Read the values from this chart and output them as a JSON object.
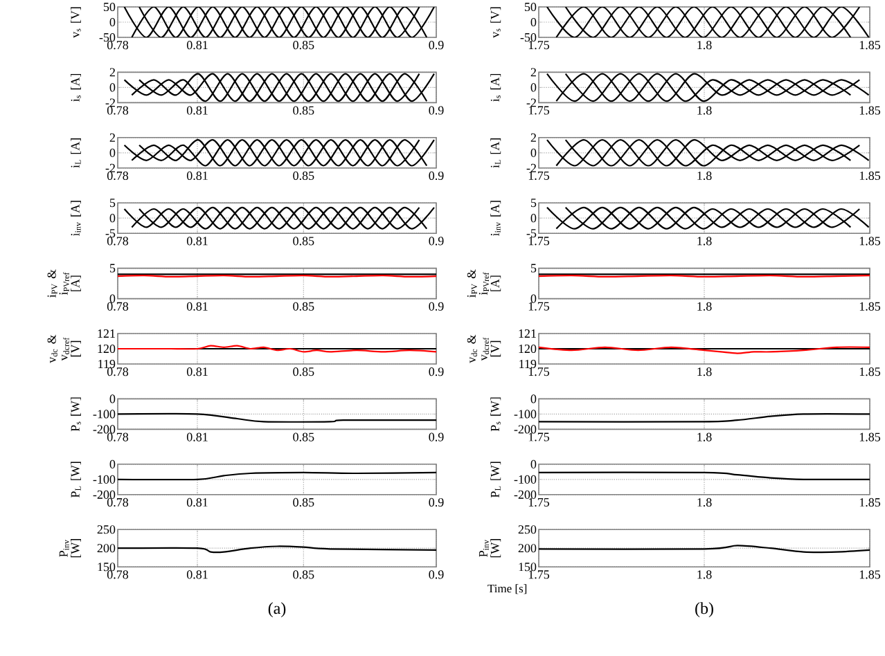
{
  "chart_data": [
    {
      "type": "line",
      "ylabel": "v$_{s}$ [V]",
      "xlim": [
        0.78,
        0.9
      ],
      "xticks": [
        0.78,
        0.81,
        0.85,
        0.9
      ],
      "ylim": [
        -50,
        50
      ],
      "yticks": [
        -50,
        0,
        50
      ],
      "grid": true,
      "series": [
        {
          "color": "#000000",
          "x": [
            0.7825,
            0.7908,
            0.7992,
            0.8075,
            0.8158,
            0.8242,
            0.8325,
            0.8408,
            0.8492,
            0.8575,
            0.8658,
            0.8742,
            0.8825,
            0.8908,
            0.8992
          ],
          "values": [
            50,
            -50,
            50,
            -50,
            50,
            -50,
            50,
            -50,
            50,
            -50,
            50,
            -50,
            50,
            -50,
            50
          ]
        },
        {
          "color": "#000000",
          "x": [
            0.7853,
            0.7936,
            0.8019,
            0.8103,
            0.8186,
            0.8269,
            0.8353,
            0.8436,
            0.8519,
            0.8603,
            0.8686,
            0.8769,
            0.8853,
            0.8936
          ],
          "values": [
            -50,
            50,
            -50,
            50,
            -50,
            50,
            -50,
            50,
            -50,
            50,
            -50,
            50,
            -50,
            50
          ]
        },
        {
          "color": "#000000",
          "x": [
            0.7881,
            0.7964,
            0.8047,
            0.8131,
            0.8214,
            0.8297,
            0.8381,
            0.8464,
            0.8547,
            0.8631,
            0.8714,
            0.8797,
            0.8881,
            0.8964
          ],
          "values": [
            50,
            -50,
            50,
            -50,
            50,
            -50,
            50,
            -50,
            50,
            -50,
            50,
            -50,
            50,
            -50
          ]
        }
      ]
    },
    {
      "type": "line",
      "ylabel": "i$_{s}$ [A]",
      "xlim": [
        0.78,
        0.9
      ],
      "xticks": [
        0.78,
        0.81,
        0.85,
        0.9
      ],
      "ylim": [
        -2,
        2
      ],
      "yticks": [
        -2,
        0,
        2
      ],
      "grid": true,
      "series": [
        {
          "color": "#000000",
          "x": [
            0.7825,
            0.7908,
            0.7992,
            0.8075,
            0.8158,
            0.8242,
            0.8325,
            0.8408,
            0.8492,
            0.8575,
            0.8658,
            0.8742,
            0.8825,
            0.8908,
            0.8992
          ],
          "values": [
            1,
            -1,
            1,
            -1,
            1.8,
            -1.8,
            1.8,
            -1.8,
            1.8,
            -1.8,
            1.8,
            -1.8,
            1.8,
            -1.8,
            1.8
          ]
        },
        {
          "color": "#000000",
          "x": [
            0.7853,
            0.7936,
            0.8019,
            0.8103,
            0.8186,
            0.8269,
            0.8353,
            0.8436,
            0.8519,
            0.8603,
            0.8686,
            0.8769,
            0.8853,
            0.8936
          ],
          "values": [
            -1,
            1,
            -1,
            1.8,
            -1.8,
            1.8,
            -1.8,
            1.8,
            -1.8,
            1.8,
            -1.8,
            1.8,
            -1.8,
            1.8
          ]
        },
        {
          "color": "#000000",
          "x": [
            0.7881,
            0.7964,
            0.8047,
            0.8131,
            0.8214,
            0.8297,
            0.8381,
            0.8464,
            0.8547,
            0.8631,
            0.8714,
            0.8797,
            0.8881,
            0.8964
          ],
          "values": [
            1,
            -1,
            1,
            -1.8,
            1.8,
            -1.8,
            1.8,
            -1.8,
            1.8,
            -1.8,
            1.8,
            -1.8,
            1.8,
            -1.8
          ]
        }
      ]
    },
    {
      "type": "line",
      "ylabel": "i$_{L}$ [A]",
      "xlim": [
        0.78,
        0.9
      ],
      "xticks": [
        0.78,
        0.81,
        0.85,
        0.9
      ],
      "ylim": [
        -2,
        2
      ],
      "yticks": [
        -2,
        0,
        2
      ],
      "grid": true,
      "series": [
        {
          "color": "#000000",
          "x": [
            0.7825,
            0.7908,
            0.7992,
            0.8075,
            0.8158,
            0.8242,
            0.8325,
            0.8408,
            0.8492,
            0.8575,
            0.8658,
            0.8742,
            0.8825,
            0.8908,
            0.8992
          ],
          "values": [
            1,
            -1,
            1,
            -1,
            1.7,
            -1.7,
            1.7,
            -1.7,
            1.7,
            -1.7,
            1.7,
            -1.7,
            1.7,
            -1.7,
            1.7
          ]
        },
        {
          "color": "#000000",
          "x": [
            0.7853,
            0.7936,
            0.8019,
            0.8103,
            0.8186,
            0.8269,
            0.8353,
            0.8436,
            0.8519,
            0.8603,
            0.8686,
            0.8769,
            0.8853,
            0.8936
          ],
          "values": [
            -1,
            1,
            -1,
            1.7,
            -1.7,
            1.7,
            -1.7,
            1.7,
            -1.7,
            1.7,
            -1.7,
            1.7,
            -1.7,
            1.7
          ]
        },
        {
          "color": "#000000",
          "x": [
            0.7881,
            0.7964,
            0.8047,
            0.8131,
            0.8214,
            0.8297,
            0.8381,
            0.8464,
            0.8547,
            0.8631,
            0.8714,
            0.8797,
            0.8881,
            0.8964
          ],
          "values": [
            1,
            -1,
            1,
            -1.7,
            1.7,
            -1.7,
            1.7,
            -1.7,
            1.7,
            -1.7,
            1.7,
            -1.7,
            1.7,
            -1.7
          ]
        }
      ]
    },
    {
      "type": "line",
      "ylabel": "i$_{inv}$ [A]",
      "xlim": [
        0.78,
        0.9
      ],
      "xticks": [
        0.78,
        0.81,
        0.85,
        0.9
      ],
      "ylim": [
        -5,
        5
      ],
      "yticks": [
        -5,
        0,
        5
      ],
      "grid": true,
      "series": [
        {
          "color": "#000000",
          "x": [
            0.7825,
            0.7908,
            0.7992,
            0.8075,
            0.8158,
            0.8242,
            0.8325,
            0.8408,
            0.8492,
            0.8575,
            0.8658,
            0.8742,
            0.8825,
            0.8908,
            0.8992
          ],
          "values": [
            3,
            -3,
            3,
            -3,
            3.5,
            -3.5,
            3.5,
            -3.5,
            3.5,
            -3.5,
            3.5,
            -3.5,
            3.5,
            -3.5,
            3.5
          ]
        },
        {
          "color": "#000000",
          "x": [
            0.7853,
            0.7936,
            0.8019,
            0.8103,
            0.8186,
            0.8269,
            0.8353,
            0.8436,
            0.8519,
            0.8603,
            0.8686,
            0.8769,
            0.8853,
            0.8936
          ],
          "values": [
            -3,
            3,
            -3,
            3.5,
            -3.5,
            3.5,
            -3.5,
            3.5,
            -3.5,
            3.5,
            -3.5,
            3.5,
            -3.5,
            3.5
          ]
        },
        {
          "color": "#000000",
          "x": [
            0.7881,
            0.7964,
            0.8047,
            0.8131,
            0.8214,
            0.8297,
            0.8381,
            0.8464,
            0.8547,
            0.8631,
            0.8714,
            0.8797,
            0.8881,
            0.8964
          ],
          "values": [
            3,
            -3,
            3,
            -3.5,
            3.5,
            -3.5,
            3.5,
            -3.5,
            3.5,
            -3.5,
            3.5,
            -3.5,
            3.5,
            -3.5
          ]
        }
      ]
    },
    {
      "type": "line",
      "ylabel": "i$_{PV}$ & i$_{PVref}$ [A]",
      "xlim": [
        0.78,
        0.9
      ],
      "xticks": [
        0.78,
        0.81,
        0.85,
        0.9
      ],
      "ylim": [
        0,
        5
      ],
      "yticks": [
        0,
        5
      ],
      "grid": true,
      "series": [
        {
          "color": "#000000",
          "x": [
            0.78,
            0.9
          ],
          "values": [
            4,
            4
          ]
        },
        {
          "color": "#ff0000",
          "x": [
            0.78,
            0.79,
            0.8,
            0.81,
            0.82,
            0.83,
            0.84,
            0.85,
            0.86,
            0.87,
            0.88,
            0.89,
            0.9
          ],
          "values": [
            3.7,
            3.8,
            3.6,
            3.7,
            3.8,
            3.6,
            3.7,
            3.8,
            3.6,
            3.7,
            3.8,
            3.6,
            3.7
          ]
        }
      ]
    },
    {
      "type": "line",
      "ylabel": "v$_{dc}$ & v$_{dcref}$ [V]",
      "xlim": [
        0.78,
        0.9
      ],
      "xticks": [
        0.78,
        0.81,
        0.85,
        0.9
      ],
      "ylim": [
        119,
        121
      ],
      "yticks": [
        119,
        120,
        121
      ],
      "grid": true,
      "series": [
        {
          "color": "#000000",
          "x": [
            0.78,
            0.9
          ],
          "values": [
            120,
            120
          ]
        },
        {
          "color": "#ff0000",
          "x": [
            0.78,
            0.79,
            0.8,
            0.81,
            0.815,
            0.82,
            0.825,
            0.83,
            0.835,
            0.84,
            0.845,
            0.85,
            0.855,
            0.86,
            0.87,
            0.88,
            0.89,
            0.9
          ],
          "values": [
            120,
            120,
            120,
            120,
            120.2,
            120.1,
            120.2,
            120,
            120.1,
            119.9,
            120,
            119.8,
            119.9,
            119.8,
            119.9,
            119.8,
            119.9,
            119.8
          ]
        }
      ]
    },
    {
      "type": "line",
      "ylabel": "P$_{s}$ [W]",
      "xlim": [
        0.78,
        0.9
      ],
      "xticks": [
        0.78,
        0.81,
        0.85,
        0.9
      ],
      "ylim": [
        -200,
        0
      ],
      "yticks": [
        -200,
        -100,
        0
      ],
      "grid": true,
      "series": [
        {
          "color": "#000000",
          "x": [
            0.78,
            0.81,
            0.825,
            0.835,
            0.86,
            0.865,
            0.9
          ],
          "values": [
            -100,
            -100,
            -130,
            -150,
            -150,
            -140,
            -140
          ]
        }
      ]
    },
    {
      "type": "line",
      "ylabel": "P$_{L}$ [W]",
      "xlim": [
        0.78,
        0.9
      ],
      "xticks": [
        0.78,
        0.81,
        0.85,
        0.9
      ],
      "ylim": [
        -200,
        0
      ],
      "yticks": [
        -200,
        -100,
        0
      ],
      "grid": true,
      "series": [
        {
          "color": "#000000",
          "x": [
            0.78,
            0.81,
            0.82,
            0.83,
            0.85,
            0.87,
            0.9
          ],
          "values": [
            -100,
            -100,
            -75,
            -60,
            -55,
            -60,
            -55
          ]
        }
      ]
    },
    {
      "type": "line",
      "ylabel": "P$_{inv}$ [W]",
      "xlim": [
        0.78,
        0.9
      ],
      "xticks": [
        0.78,
        0.81,
        0.85,
        0.9
      ],
      "ylim": [
        150,
        250
      ],
      "yticks": [
        150,
        200,
        250
      ],
      "grid": true,
      "annotations": [
        "(a)"
      ],
      "series": [
        {
          "color": "#000000",
          "x": [
            0.78,
            0.81,
            0.815,
            0.82,
            0.83,
            0.84,
            0.85,
            0.86,
            0.9
          ],
          "values": [
            200,
            200,
            190,
            190,
            200,
            205,
            203,
            198,
            195
          ]
        }
      ]
    },
    {
      "type": "line",
      "ylabel": "v$_{s}$ [V]",
      "xlim": [
        1.75,
        1.85
      ],
      "xticks": [
        1.75,
        1.8,
        1.85
      ],
      "ylim": [
        -50,
        50
      ],
      "yticks": [
        -50,
        0,
        50
      ],
      "grid": true,
      "series": [
        {
          "color": "#000000",
          "x": [
            1.7525,
            1.7608,
            1.7692,
            1.7775,
            1.7858,
            1.7942,
            1.8025,
            1.8108,
            1.8192,
            1.8275,
            1.8358,
            1.8442
          ],
          "values": [
            50,
            -50,
            50,
            -50,
            50,
            -50,
            50,
            -50,
            50,
            -50,
            50,
            -50
          ]
        },
        {
          "color": "#000000",
          "x": [
            1.7553,
            1.7636,
            1.7719,
            1.7803,
            1.7886,
            1.7969,
            1.8053,
            1.8136,
            1.8219,
            1.8303,
            1.8386,
            1.8469
          ],
          "values": [
            -50,
            50,
            -50,
            50,
            -50,
            50,
            -50,
            50,
            -50,
            50,
            -50,
            50
          ]
        },
        {
          "color": "#000000",
          "x": [
            1.7581,
            1.7664,
            1.7747,
            1.7831,
            1.7914,
            1.7997,
            1.8081,
            1.8164,
            1.8247,
            1.8331,
            1.8414,
            1.8497
          ],
          "values": [
            50,
            -50,
            50,
            -50,
            50,
            -50,
            50,
            -50,
            50,
            -50,
            50,
            -50
          ]
        }
      ]
    },
    {
      "type": "line",
      "ylabel": "i$_{s}$ [A]",
      "xlim": [
        1.75,
        1.85
      ],
      "xticks": [
        1.75,
        1.8,
        1.85
      ],
      "ylim": [
        -2,
        2
      ],
      "yticks": [
        -2,
        0,
        2
      ],
      "grid": true,
      "series": [
        {
          "color": "#000000",
          "x": [
            1.7525,
            1.7608,
            1.7692,
            1.7775,
            1.7858,
            1.7942,
            1.8025,
            1.8108,
            1.8192,
            1.8275,
            1.8358,
            1.8442
          ],
          "values": [
            1.8,
            -1.8,
            1.8,
            -1.8,
            1.8,
            -1.8,
            1,
            -1,
            1,
            -1,
            1,
            -1
          ]
        },
        {
          "color": "#000000",
          "x": [
            1.7553,
            1.7636,
            1.7719,
            1.7803,
            1.7886,
            1.7969,
            1.8053,
            1.8136,
            1.8219,
            1.8303,
            1.8386,
            1.8469
          ],
          "values": [
            -1.8,
            1.8,
            -1.8,
            1.8,
            -1.8,
            1.8,
            -1,
            1,
            -1,
            1,
            -1,
            1
          ]
        },
        {
          "color": "#000000",
          "x": [
            1.7581,
            1.7664,
            1.7747,
            1.7831,
            1.7914,
            1.7997,
            1.8081,
            1.8164,
            1.8247,
            1.8331,
            1.8414,
            1.8497
          ],
          "values": [
            1.8,
            -1.8,
            1.8,
            -1.8,
            1.8,
            -1.8,
            1,
            -1,
            1,
            -1,
            1,
            -1
          ]
        }
      ]
    },
    {
      "type": "line",
      "ylabel": "i$_{L}$ [A]",
      "xlim": [
        1.75,
        1.85
      ],
      "xticks": [
        1.75,
        1.8,
        1.85
      ],
      "ylim": [
        -2,
        2
      ],
      "yticks": [
        -2,
        0,
        2
      ],
      "grid": true,
      "series": [
        {
          "color": "#000000",
          "x": [
            1.7525,
            1.7608,
            1.7692,
            1.7775,
            1.7858,
            1.7942,
            1.8025,
            1.8108,
            1.8192,
            1.8275,
            1.8358,
            1.8442
          ],
          "values": [
            1.7,
            -1.7,
            1.7,
            -1.7,
            1.7,
            -1.7,
            1,
            -1,
            1,
            -1,
            1,
            -1
          ]
        },
        {
          "color": "#000000",
          "x": [
            1.7553,
            1.7636,
            1.7719,
            1.7803,
            1.7886,
            1.7969,
            1.8053,
            1.8136,
            1.8219,
            1.8303,
            1.8386,
            1.8469
          ],
          "values": [
            -1.7,
            1.7,
            -1.7,
            1.7,
            -1.7,
            1.7,
            -1,
            1,
            -1,
            1,
            -1,
            1
          ]
        },
        {
          "color": "#000000",
          "x": [
            1.7581,
            1.7664,
            1.7747,
            1.7831,
            1.7914,
            1.7997,
            1.8081,
            1.8164,
            1.8247,
            1.8331,
            1.8414,
            1.8497
          ],
          "values": [
            1.7,
            -1.7,
            1.7,
            -1.7,
            1.7,
            -1.7,
            1,
            -1,
            1,
            -1,
            1,
            -1
          ]
        }
      ]
    },
    {
      "type": "line",
      "ylabel": "i$_{inv}$ [A]",
      "xlim": [
        1.75,
        1.85
      ],
      "xticks": [
        1.75,
        1.8,
        1.85
      ],
      "ylim": [
        -5,
        5
      ],
      "yticks": [
        -5,
        0,
        5
      ],
      "grid": true,
      "series": [
        {
          "color": "#000000",
          "x": [
            1.7525,
            1.7608,
            1.7692,
            1.7775,
            1.7858,
            1.7942,
            1.8025,
            1.8108,
            1.8192,
            1.8275,
            1.8358,
            1.8442
          ],
          "values": [
            3.5,
            -3.5,
            3.5,
            -3.5,
            3.5,
            -3.5,
            3,
            -3,
            3,
            -3,
            3,
            -3
          ]
        },
        {
          "color": "#000000",
          "x": [
            1.7553,
            1.7636,
            1.7719,
            1.7803,
            1.7886,
            1.7969,
            1.8053,
            1.8136,
            1.8219,
            1.8303,
            1.8386,
            1.8469
          ],
          "values": [
            -3.5,
            3.5,
            -3.5,
            3.5,
            -3.5,
            3.5,
            -3,
            3,
            -3,
            3,
            -3,
            3
          ]
        },
        {
          "color": "#000000",
          "x": [
            1.7581,
            1.7664,
            1.7747,
            1.7831,
            1.7914,
            1.7997,
            1.8081,
            1.8164,
            1.8247,
            1.8331,
            1.8414,
            1.8497
          ],
          "values": [
            3.5,
            -3.5,
            3.5,
            -3.5,
            3.5,
            -3.5,
            3,
            -3,
            3,
            -3,
            3,
            -3
          ]
        }
      ]
    },
    {
      "type": "line",
      "ylabel": "i$_{PV}$ & i$_{PVref}$ [A]",
      "xlim": [
        1.75,
        1.85
      ],
      "xticks": [
        1.75,
        1.8,
        1.85
      ],
      "ylim": [
        0,
        5
      ],
      "yticks": [
        0,
        5
      ],
      "grid": true,
      "series": [
        {
          "color": "#000000",
          "x": [
            1.75,
            1.85
          ],
          "values": [
            4,
            4
          ]
        },
        {
          "color": "#ff0000",
          "x": [
            1.75,
            1.76,
            1.77,
            1.78,
            1.79,
            1.8,
            1.81,
            1.82,
            1.83,
            1.84,
            1.85
          ],
          "values": [
            3.7,
            3.8,
            3.6,
            3.7,
            3.8,
            3.6,
            3.7,
            3.8,
            3.6,
            3.7,
            3.8
          ]
        }
      ]
    },
    {
      "type": "line",
      "ylabel": "v$_{dc}$ & v$_{dcref}$ [V]",
      "xlim": [
        1.75,
        1.85
      ],
      "xticks": [
        1.75,
        1.8,
        1.85
      ],
      "ylim": [
        119,
        121
      ],
      "yticks": [
        119,
        120,
        121
      ],
      "grid": true,
      "series": [
        {
          "color": "#000000",
          "x": [
            1.75,
            1.85
          ],
          "values": [
            120,
            120
          ]
        },
        {
          "color": "#ff0000",
          "x": [
            1.75,
            1.76,
            1.77,
            1.78,
            1.79,
            1.8,
            1.805,
            1.81,
            1.815,
            1.82,
            1.83,
            1.84,
            1.85
          ],
          "values": [
            120.1,
            119.9,
            120.1,
            119.9,
            120.1,
            119.9,
            119.8,
            119.7,
            119.8,
            119.8,
            119.9,
            120.1,
            120.1
          ]
        }
      ]
    },
    {
      "type": "line",
      "ylabel": "P$_{s}$ [W]",
      "xlim": [
        1.75,
        1.85
      ],
      "xticks": [
        1.75,
        1.8,
        1.85
      ],
      "ylim": [
        -200,
        0
      ],
      "yticks": [
        -200,
        -100,
        0
      ],
      "grid": true,
      "series": [
        {
          "color": "#000000",
          "x": [
            1.75,
            1.8,
            1.81,
            1.82,
            1.83,
            1.85
          ],
          "values": [
            -150,
            -150,
            -140,
            -115,
            -100,
            -100
          ]
        }
      ]
    },
    {
      "type": "line",
      "ylabel": "P$_{L}$ [W]",
      "xlim": [
        1.75,
        1.85
      ],
      "xticks": [
        1.75,
        1.8,
        1.85
      ],
      "ylim": [
        -200,
        0
      ],
      "yticks": [
        -200,
        -100,
        0
      ],
      "grid": true,
      "series": [
        {
          "color": "#000000",
          "x": [
            1.75,
            1.8,
            1.81,
            1.82,
            1.83,
            1.85
          ],
          "values": [
            -55,
            -55,
            -70,
            -90,
            -100,
            -100
          ]
        }
      ]
    },
    {
      "type": "line",
      "ylabel": "P$_{inv}$ [W]",
      "xlabel": "Time [s]",
      "xlim": [
        1.75,
        1.85
      ],
      "xticks": [
        1.75,
        1.8,
        1.85
      ],
      "ylim": [
        150,
        250
      ],
      "yticks": [
        150,
        200,
        250
      ],
      "grid": true,
      "annotations": [
        "(b)"
      ],
      "series": [
        {
          "color": "#000000",
          "x": [
            1.75,
            1.8,
            1.81,
            1.82,
            1.83,
            1.84,
            1.85
          ],
          "values": [
            198,
            198,
            207,
            200,
            190,
            190,
            195
          ]
        }
      ]
    }
  ]
}
